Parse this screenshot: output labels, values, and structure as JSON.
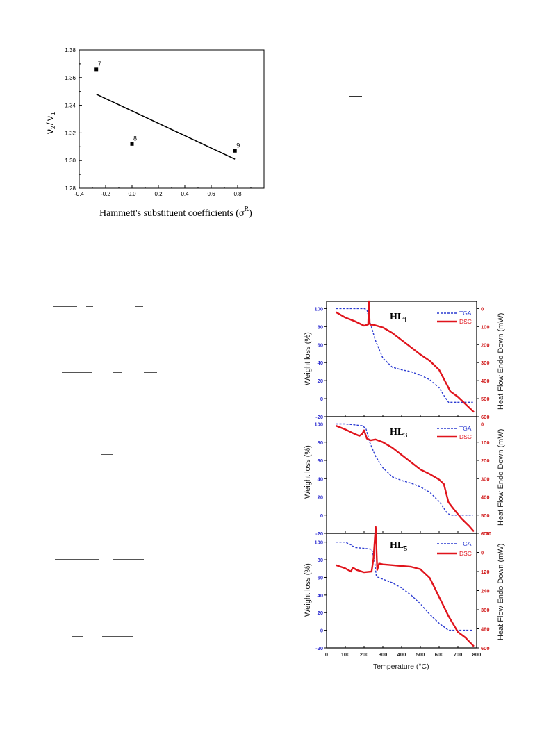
{
  "figure_hammett": {
    "xlabel": "Hammett's  substituent coefficients (σ",
    "xlabel_sup": "R",
    "xlabel_close": ")",
    "ylabel_nu": "ν",
    "ylabel_2": "2",
    "ylabel_slash": "/",
    "ylabel_1": "1",
    "x_ticks": [
      "-0.4",
      "-0.2",
      "0.0",
      "0.2",
      "0.4",
      "0.6",
      "0.8"
    ],
    "y_ticks": [
      "1.28",
      "1.30",
      "1.32",
      "1.34",
      "1.36",
      "1.38"
    ]
  },
  "figure_thermal": {
    "panels": [
      {
        "label": "HL",
        "sub": "1"
      },
      {
        "label": "HL",
        "sub": "3"
      },
      {
        "label": "HL",
        "sub": "5"
      }
    ],
    "legend_tga": "TGA",
    "legend_dsc": "DSC",
    "ylabel_left": "Weight loss (%)",
    "ylabel_right": "Heat Flow Endo Down (mW)",
    "xlabel": "Temperature (°C)",
    "x_ticks": [
      "0",
      "100",
      "200",
      "300",
      "400",
      "500",
      "600",
      "700",
      "800"
    ],
    "left_ticks": [
      "100",
      "80",
      "60",
      "40",
      "20",
      "0",
      "-20"
    ],
    "right_ticks_1": [
      "0",
      "100",
      "200",
      "300",
      "400",
      "500",
      "600"
    ],
    "right_ticks_2": [
      "0",
      "100",
      "200",
      "300",
      "400",
      "500",
      "600"
    ],
    "right_ticks_3": [
      "-120",
      "0",
      "120",
      "240",
      "360",
      "480",
      "600"
    ],
    "colors": {
      "tga": "#2b3bd1",
      "dsc": "#e0141c",
      "left_axis": "#2b2bd0",
      "right_axis": "#d01818"
    }
  },
  "chart_data": [
    {
      "type": "scatter",
      "title": "",
      "xlabel": "Hammett's  substituent coefficients (σR)",
      "ylabel": "ν2/ν1",
      "xlim": [
        -0.4,
        1.0
      ],
      "ylim": [
        1.28,
        1.38
      ],
      "points": [
        {
          "label": "7",
          "x": -0.27,
          "y": 1.366
        },
        {
          "label": "8",
          "x": 0.0,
          "y": 1.312
        },
        {
          "label": "9",
          "x": 0.78,
          "y": 1.307
        }
      ],
      "fit_line": {
        "x": [
          -0.27,
          0.78
        ],
        "y": [
          1.348,
          1.301
        ]
      }
    },
    {
      "type": "line",
      "panel": "HL1",
      "xlabel": "Temperature (°C)",
      "ylabel": "Weight loss (%)",
      "ylabel_right": "Heat Flow Endo Down (mW)",
      "xlim": [
        0,
        800
      ],
      "ylim": [
        -20,
        110
      ],
      "ylim_right": [
        -40,
        600
      ],
      "series": [
        {
          "name": "TGA",
          "axis": "left",
          "x": [
            50,
            100,
            150,
            200,
            215,
            230,
            260,
            300,
            350,
            400,
            450,
            500,
            550,
            600,
            630,
            650,
            700,
            750,
            780
          ],
          "y": [
            100,
            100,
            100,
            100,
            99,
            86,
            65,
            45,
            35,
            32,
            30,
            26,
            21,
            12,
            2,
            -4,
            -4,
            -4,
            -4
          ]
        },
        {
          "name": "DSC",
          "axis": "right",
          "x": [
            50,
            100,
            150,
            200,
            222,
            226,
            230,
            235,
            250,
            300,
            350,
            400,
            450,
            500,
            550,
            600,
            630,
            660,
            700,
            750,
            785
          ],
          "y": [
            20,
            50,
            70,
            95,
            88,
            -40,
            85,
            90,
            90,
            105,
            135,
            175,
            215,
            255,
            290,
            340,
            400,
            460,
            490,
            540,
            575
          ]
        }
      ]
    },
    {
      "type": "line",
      "panel": "HL3",
      "xlabel": "Temperature (°C)",
      "ylabel": "Weight loss (%)",
      "ylabel_right": "Heat Flow Endo Down (mW)",
      "xlim": [
        0,
        800
      ],
      "ylim": [
        -20,
        110
      ],
      "ylim_right": [
        -40,
        600
      ],
      "series": [
        {
          "name": "TGA",
          "axis": "left",
          "x": [
            50,
            100,
            150,
            190,
            210,
            230,
            260,
            300,
            350,
            400,
            450,
            500,
            550,
            600,
            640,
            660,
            700,
            750,
            780
          ],
          "y": [
            100,
            100,
            99,
            98,
            95,
            80,
            65,
            52,
            42,
            38,
            35,
            31,
            25,
            15,
            3,
            0,
            0,
            0,
            0
          ]
        },
        {
          "name": "DSC",
          "axis": "right",
          "x": [
            50,
            100,
            150,
            175,
            190,
            200,
            215,
            235,
            260,
            300,
            350,
            400,
            450,
            500,
            550,
            600,
            625,
            650,
            680,
            720,
            760,
            785
          ],
          "y": [
            10,
            30,
            55,
            65,
            55,
            35,
            80,
            90,
            85,
            100,
            130,
            170,
            210,
            250,
            275,
            305,
            330,
            430,
            470,
            520,
            560,
            590
          ]
        }
      ]
    },
    {
      "type": "line",
      "panel": "HL5",
      "xlabel": "Temperature (°C)",
      "ylabel": "Weight loss (%)",
      "ylabel_right": "Heat Flow Endo Down (mW)",
      "xlim": [
        0,
        800
      ],
      "ylim": [
        -20,
        110
      ],
      "ylim_right": [
        -120,
        600
      ],
      "series": [
        {
          "name": "TGA",
          "axis": "left",
          "x": [
            50,
            100,
            130,
            150,
            200,
            240,
            255,
            265,
            275,
            300,
            350,
            400,
            450,
            500,
            550,
            600,
            650,
            700,
            750,
            780
          ],
          "y": [
            100,
            100,
            97,
            94,
            93,
            92,
            80,
            62,
            60,
            58,
            54,
            48,
            40,
            30,
            18,
            8,
            0,
            0,
            0,
            0
          ]
        },
        {
          "name": "DSC",
          "axis": "right",
          "x": [
            50,
            100,
            130,
            140,
            160,
            200,
            240,
            250,
            262,
            270,
            280,
            300,
            350,
            400,
            450,
            500,
            550,
            600,
            650,
            700,
            740,
            760,
            785
          ],
          "y": [
            80,
            100,
            120,
            95,
            110,
            125,
            120,
            40,
            -160,
            110,
            70,
            75,
            80,
            85,
            90,
            105,
            160,
            280,
            400,
            500,
            535,
            560,
            590
          ]
        }
      ]
    }
  ]
}
